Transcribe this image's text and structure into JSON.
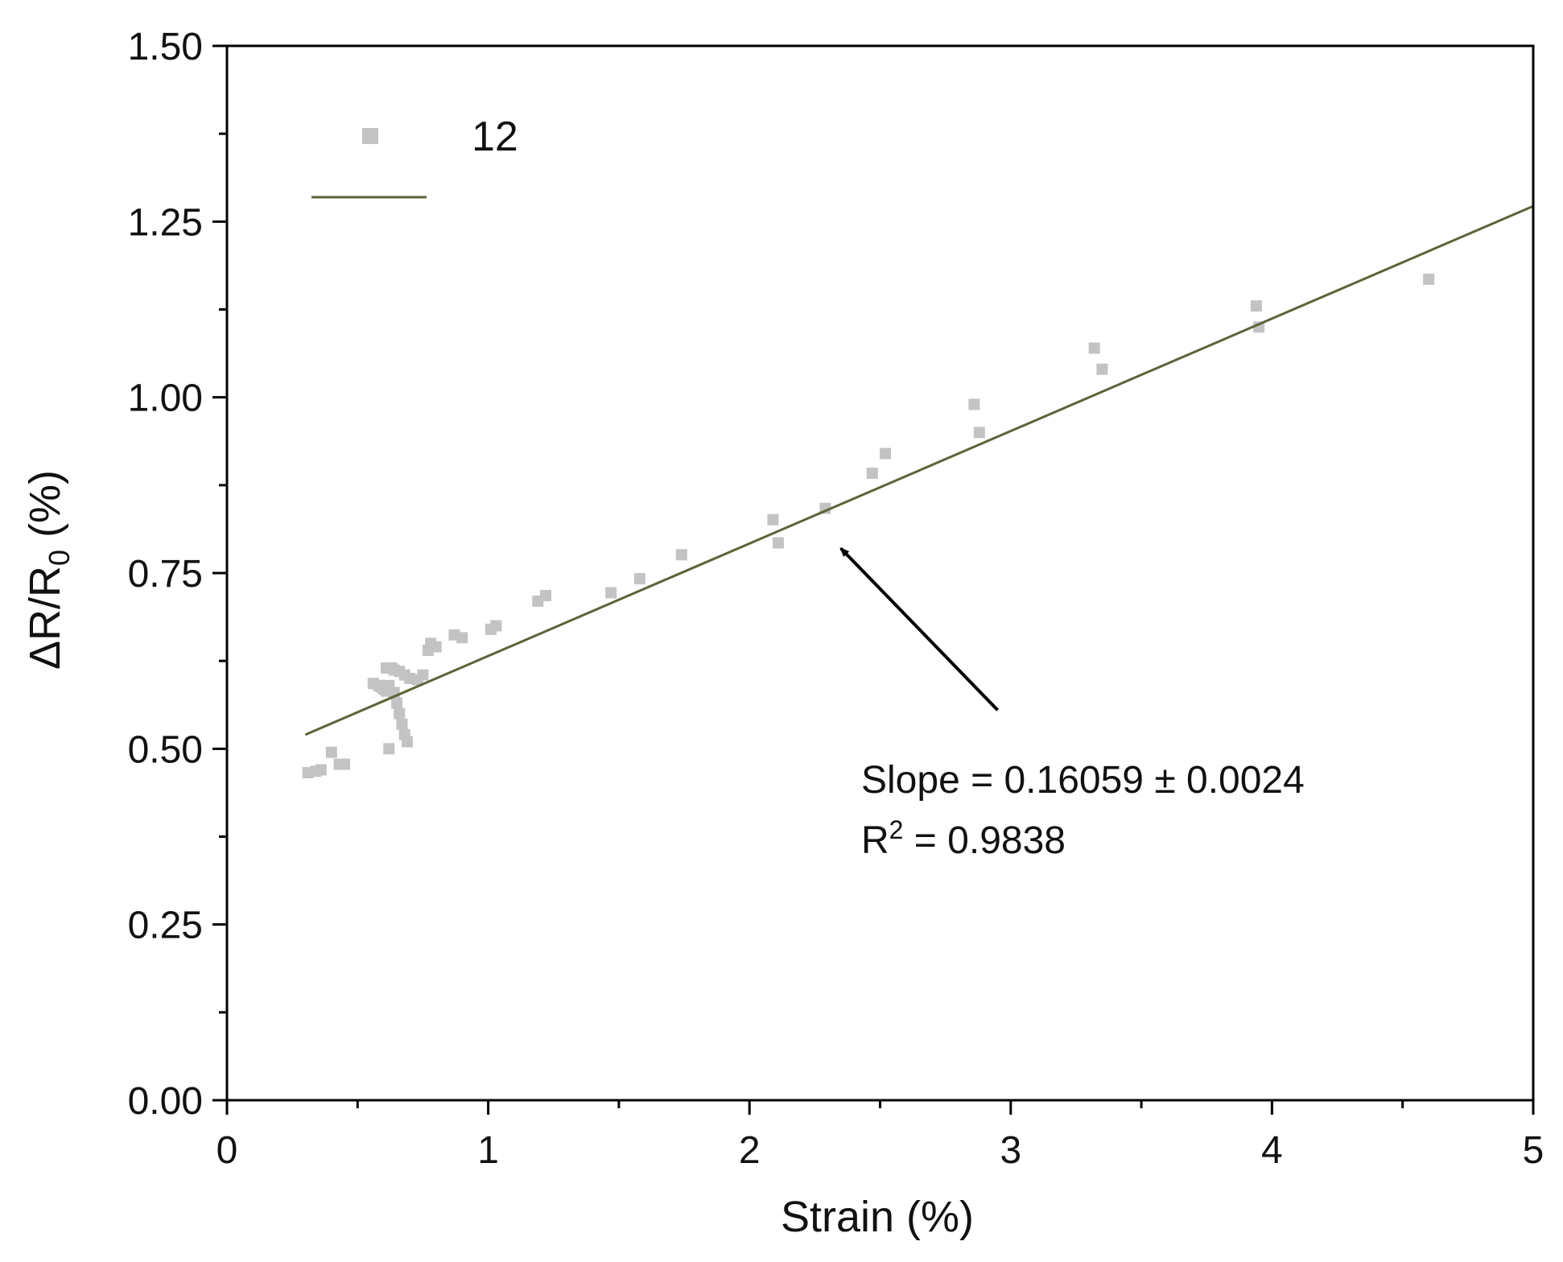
{
  "chart_data": {
    "type": "scatter",
    "xlabel": "Strain (%)",
    "ylabel": {
      "main": "ΔR/R",
      "sub": "0",
      "suffix": " (%)"
    },
    "xlim": [
      0,
      5
    ],
    "ylim": [
      0,
      1.5
    ],
    "x_ticks": [
      0,
      1,
      2,
      3,
      4,
      5
    ],
    "x_tick_labels": [
      "0",
      "1",
      "2",
      "3",
      "4",
      "5"
    ],
    "y_ticks": [
      0,
      0.25,
      0.5,
      0.75,
      1.0,
      1.25,
      1.5
    ],
    "y_tick_labels": [
      "0.00",
      "0.25",
      "0.50",
      "0.75",
      "1.00",
      "1.25",
      "1.50"
    ],
    "grid": false,
    "legend": {
      "placement": "top-left",
      "entries": [
        {
          "label": "12",
          "marker": "square"
        },
        {
          "label": "",
          "marker": "line"
        }
      ]
    },
    "series": [
      {
        "name": "12",
        "color": "#c3c3c3",
        "points": [
          [
            0.31,
            0.466
          ],
          [
            0.34,
            0.468
          ],
          [
            0.36,
            0.47
          ],
          [
            0.4,
            0.495
          ],
          [
            0.43,
            0.478
          ],
          [
            0.45,
            0.478
          ],
          [
            0.56,
            0.593
          ],
          [
            0.58,
            0.59
          ],
          [
            0.59,
            0.588
          ],
          [
            0.6,
            0.585
          ],
          [
            0.61,
            0.582
          ],
          [
            0.62,
            0.59
          ],
          [
            0.61,
            0.615
          ],
          [
            0.63,
            0.615
          ],
          [
            0.64,
            0.612
          ],
          [
            0.66,
            0.61
          ],
          [
            0.68,
            0.605
          ],
          [
            0.7,
            0.6
          ],
          [
            0.73,
            0.598
          ],
          [
            0.75,
            0.605
          ],
          [
            0.64,
            0.58
          ],
          [
            0.65,
            0.565
          ],
          [
            0.66,
            0.55
          ],
          [
            0.67,
            0.535
          ],
          [
            0.68,
            0.52
          ],
          [
            0.69,
            0.51
          ],
          [
            0.62,
            0.5
          ],
          [
            0.77,
            0.64
          ],
          [
            0.78,
            0.65
          ],
          [
            0.8,
            0.645
          ],
          [
            0.87,
            0.662
          ],
          [
            0.9,
            0.658
          ],
          [
            1.01,
            0.67
          ],
          [
            1.03,
            0.675
          ],
          [
            1.19,
            0.71
          ],
          [
            1.22,
            0.718
          ],
          [
            1.47,
            0.722
          ],
          [
            1.58,
            0.742
          ],
          [
            1.74,
            0.776
          ],
          [
            2.09,
            0.826
          ],
          [
            2.11,
            0.793
          ],
          [
            2.29,
            0.842
          ],
          [
            2.47,
            0.892
          ],
          [
            2.52,
            0.92
          ],
          [
            2.86,
            0.99
          ],
          [
            2.88,
            0.95
          ],
          [
            3.32,
            1.07
          ],
          [
            3.35,
            1.04
          ],
          [
            3.94,
            1.13
          ],
          [
            3.95,
            1.1
          ],
          [
            4.6,
            1.168
          ]
        ]
      }
    ],
    "fit_line": {
      "color": "#5a6437",
      "x_range": [
        0.3,
        5.0
      ],
      "y_range": [
        0.52,
        1.272
      ]
    },
    "annotation": {
      "slope_text": "Slope = 0.16059 ± 0.0024",
      "r2_prefix": "R",
      "r2_exp": "2",
      "r2_value": " = 0.9838",
      "arrow_from": [
        2.95,
        0.555
      ],
      "arrow_to": [
        2.35,
        0.785
      ]
    }
  }
}
